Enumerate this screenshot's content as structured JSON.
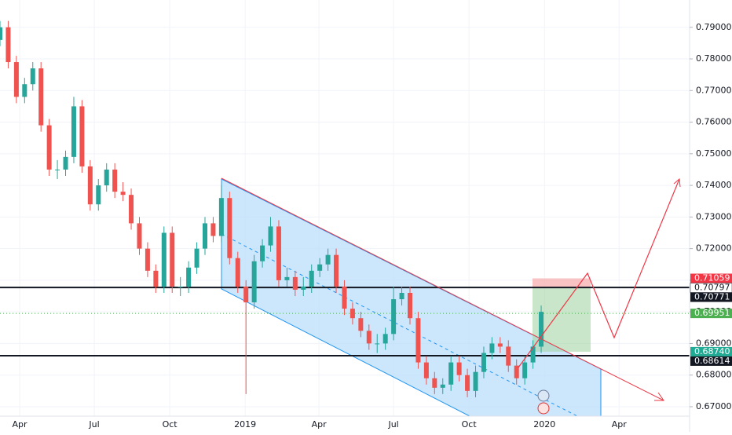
{
  "chart_data": {
    "type": "candlestick",
    "up_color": "#26a69a",
    "down_color": "#ef5350",
    "grid": true,
    "x": [
      66,
      76,
      86,
      96,
      106,
      116,
      126,
      136,
      146,
      156,
      166,
      176,
      186,
      196,
      206,
      216,
      226,
      236,
      246,
      256,
      266,
      276,
      286,
      296,
      306,
      316,
      326,
      336,
      346,
      356,
      366,
      376,
      386,
      396,
      406,
      416,
      426,
      436,
      446,
      456,
      466,
      476,
      486,
      496,
      506,
      516,
      526,
      536,
      546,
      556,
      566,
      576,
      586,
      596,
      606,
      616,
      626,
      636,
      646,
      656,
      666,
      676,
      686,
      696,
      706,
      716,
      726
    ],
    "candles": [
      [
        0.786,
        0.792,
        0.784,
        0.79
      ],
      [
        0.79,
        0.792,
        0.777,
        0.779
      ],
      [
        0.779,
        0.781,
        0.766,
        0.768
      ],
      [
        0.768,
        0.774,
        0.766,
        0.772
      ],
      [
        0.772,
        0.779,
        0.77,
        0.777
      ],
      [
        0.777,
        0.779,
        0.757,
        0.759
      ],
      [
        0.759,
        0.761,
        0.743,
        0.745
      ],
      [
        0.745,
        0.748,
        0.742,
        0.745
      ],
      [
        0.745,
        0.751,
        0.743,
        0.749
      ],
      [
        0.749,
        0.768,
        0.747,
        0.765
      ],
      [
        0.765,
        0.767,
        0.744,
        0.746
      ],
      [
        0.746,
        0.748,
        0.732,
        0.734
      ],
      [
        0.734,
        0.742,
        0.732,
        0.74
      ],
      [
        0.74,
        0.747,
        0.738,
        0.745
      ],
      [
        0.745,
        0.747,
        0.736,
        0.738
      ],
      [
        0.738,
        0.741,
        0.735,
        0.737
      ],
      [
        0.737,
        0.739,
        0.726,
        0.728
      ],
      [
        0.728,
        0.73,
        0.718,
        0.72
      ],
      [
        0.72,
        0.722,
        0.711,
        0.713
      ],
      [
        0.713,
        0.715,
        0.706,
        0.708
      ],
      [
        0.708,
        0.727,
        0.706,
        0.725
      ],
      [
        0.725,
        0.727,
        0.706,
        0.708
      ],
      [
        0.708,
        0.711,
        0.705,
        0.708
      ],
      [
        0.708,
        0.716,
        0.706,
        0.714
      ],
      [
        0.714,
        0.722,
        0.712,
        0.72
      ],
      [
        0.72,
        0.73,
        0.718,
        0.728
      ],
      [
        0.728,
        0.73,
        0.722,
        0.724
      ],
      [
        0.724,
        0.74,
        0.722,
        0.736
      ],
      [
        0.736,
        0.738,
        0.715,
        0.717
      ],
      [
        0.717,
        0.719,
        0.706,
        0.708
      ],
      [
        0.708,
        0.71,
        0.674,
        0.703
      ],
      [
        0.703,
        0.718,
        0.701,
        0.716
      ],
      [
        0.716,
        0.723,
        0.714,
        0.721
      ],
      [
        0.721,
        0.73,
        0.719,
        0.727
      ],
      [
        0.727,
        0.729,
        0.708,
        0.71
      ],
      [
        0.71,
        0.714,
        0.708,
        0.711
      ],
      [
        0.711,
        0.713,
        0.705,
        0.707
      ],
      [
        0.707,
        0.711,
        0.705,
        0.708
      ],
      [
        0.708,
        0.715,
        0.706,
        0.713
      ],
      [
        0.713,
        0.717,
        0.711,
        0.715
      ],
      [
        0.715,
        0.72,
        0.713,
        0.718
      ],
      [
        0.718,
        0.72,
        0.706,
        0.708
      ],
      [
        0.708,
        0.71,
        0.699,
        0.701
      ],
      [
        0.701,
        0.703,
        0.696,
        0.698
      ],
      [
        0.698,
        0.7,
        0.692,
        0.694
      ],
      [
        0.694,
        0.696,
        0.688,
        0.69
      ],
      [
        0.69,
        0.693,
        0.687,
        0.69
      ],
      [
        0.69,
        0.695,
        0.688,
        0.693
      ],
      [
        0.693,
        0.708,
        0.691,
        0.704
      ],
      [
        0.704,
        0.708,
        0.702,
        0.706
      ],
      [
        0.706,
        0.708,
        0.696,
        0.698
      ],
      [
        0.698,
        0.7,
        0.682,
        0.684
      ],
      [
        0.684,
        0.686,
        0.677,
        0.679
      ],
      [
        0.679,
        0.681,
        0.674,
        0.676
      ],
      [
        0.676,
        0.679,
        0.674,
        0.677
      ],
      [
        0.677,
        0.686,
        0.675,
        0.684
      ],
      [
        0.684,
        0.686,
        0.678,
        0.68
      ],
      [
        0.68,
        0.682,
        0.673,
        0.675
      ],
      [
        0.675,
        0.683,
        0.673,
        0.681
      ],
      [
        0.681,
        0.689,
        0.679,
        0.687
      ],
      [
        0.687,
        0.692,
        0.685,
        0.69
      ],
      [
        0.69,
        0.692,
        0.687,
        0.689
      ],
      [
        0.689,
        0.691,
        0.681,
        0.683
      ],
      [
        0.683,
        0.685,
        0.677,
        0.679
      ],
      [
        0.679,
        0.686,
        0.677,
        0.684
      ],
      [
        0.684,
        0.691,
        0.682,
        0.689
      ],
      [
        0.689,
        0.702,
        0.687,
        0.7
      ]
    ],
    "xlim": [
      66,
      907
    ],
    "xticks": [
      {
        "value": 90,
        "label": "Apr"
      },
      {
        "value": 181,
        "label": "Jul"
      },
      {
        "value": 273,
        "label": "Oct"
      },
      {
        "value": 365,
        "label": "2019"
      },
      {
        "value": 455,
        "label": "Apr"
      },
      {
        "value": 546,
        "label": "Jul"
      },
      {
        "value": 638,
        "label": "Oct"
      },
      {
        "value": 730,
        "label": "2020"
      },
      {
        "value": 821,
        "label": "Apr"
      }
    ],
    "ylim": [
      0.66701,
      0.79863
    ],
    "yticks": [
      {
        "value": 0.67,
        "label": "0.67000"
      },
      {
        "value": 0.68,
        "label": "0.68000"
      },
      {
        "value": 0.69,
        "label": "0.69000"
      },
      {
        "value": 0.7,
        "label": "0.70000"
      },
      {
        "value": 0.71,
        "label": "0.71000"
      },
      {
        "value": 0.72,
        "label": "0.72000"
      },
      {
        "value": 0.73,
        "label": "0.73000"
      },
      {
        "value": 0.74,
        "label": "0.74000"
      },
      {
        "value": 0.75,
        "label": "0.75000"
      },
      {
        "value": 0.76,
        "label": "0.76000"
      },
      {
        "value": 0.77,
        "label": "0.77000"
      },
      {
        "value": 0.78,
        "label": "0.78000"
      },
      {
        "value": 0.79,
        "label": "0.79000"
      }
    ],
    "price_labels": [
      {
        "value": 0.71059,
        "label": "0.71059",
        "color": "#f23645"
      },
      {
        "value": 0.70797,
        "label": "0.70797",
        "color": "#ffffff"
      },
      {
        "value": 0.70771,
        "label": "0.70771",
        "color": "#131722"
      },
      {
        "value": 0.69951,
        "label": "0.69951",
        "color": "#4caf50"
      },
      {
        "value": 0.6874,
        "label": "0.68740",
        "color": "#22ab94"
      },
      {
        "value": 0.68614,
        "label": "0.68614",
        "color": "#131722"
      }
    ]
  }
}
